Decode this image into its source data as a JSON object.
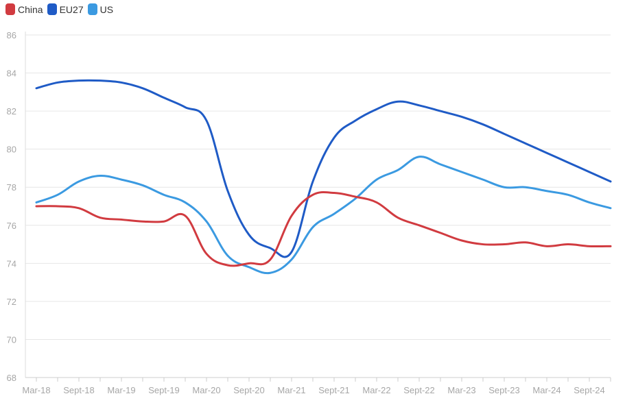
{
  "chart_data": {
    "type": "line",
    "title": "",
    "xlabel": "",
    "ylabel": "",
    "ylim": [
      68,
      86
    ],
    "yticks": [
      "68",
      "70",
      "72",
      "74",
      "76",
      "78",
      "80",
      "82",
      "84",
      "86"
    ],
    "xtick_labels": [
      "Mar-18",
      "Sept-18",
      "Mar-19",
      "Sept-19",
      "Mar-20",
      "Sept-20",
      "Mar-21",
      "Sept-21",
      "Mar-22",
      "Sept-22",
      "Mar-23",
      "Sept-23",
      "Mar-24",
      "Sept-24"
    ],
    "x": [
      "Mar-18",
      "Jun-18",
      "Sept-18",
      "Dec-18",
      "Mar-19",
      "Jun-19",
      "Sept-19",
      "Dec-19",
      "Mar-20",
      "Jun-20",
      "Sept-20",
      "Dec-20",
      "Mar-21",
      "Jun-21",
      "Sept-21",
      "Dec-21",
      "Mar-22",
      "Jun-22",
      "Sept-22",
      "Dec-22",
      "Mar-23",
      "Jun-23",
      "Sept-23",
      "Dec-23",
      "Mar-24",
      "Jun-24",
      "Sept-24",
      "Dec-24"
    ],
    "grid": true,
    "legend_position": "top-left",
    "series": [
      {
        "name": "China",
        "color": "#d13b40",
        "values": [
          77.0,
          77.0,
          76.9,
          76.4,
          76.3,
          76.2,
          76.2,
          76.5,
          74.5,
          73.9,
          74.0,
          74.2,
          76.5,
          77.6,
          77.7,
          77.5,
          77.2,
          76.4,
          76.0,
          75.6,
          75.2,
          75.0,
          75.0,
          75.1,
          74.9,
          75.0,
          74.9,
          74.9
        ]
      },
      {
        "name": "EU27",
        "color": "#1f5bc6",
        "values": [
          83.2,
          83.5,
          83.6,
          83.6,
          83.5,
          83.2,
          82.7,
          82.2,
          81.5,
          77.8,
          75.5,
          74.8,
          74.6,
          78.3,
          80.6,
          81.5,
          82.1,
          82.5,
          82.3,
          82.0,
          81.7,
          81.3,
          80.8,
          80.3,
          79.8,
          79.3,
          78.8,
          78.3
        ]
      },
      {
        "name": "US",
        "color": "#3b9ae1",
        "values": [
          77.2,
          77.6,
          78.3,
          78.6,
          78.4,
          78.1,
          77.6,
          77.2,
          76.2,
          74.4,
          73.8,
          73.5,
          74.2,
          75.9,
          76.6,
          77.4,
          78.4,
          78.9,
          79.6,
          79.2,
          78.8,
          78.4,
          78.0,
          78.0,
          77.8,
          77.6,
          77.2,
          76.9
        ]
      }
    ]
  }
}
